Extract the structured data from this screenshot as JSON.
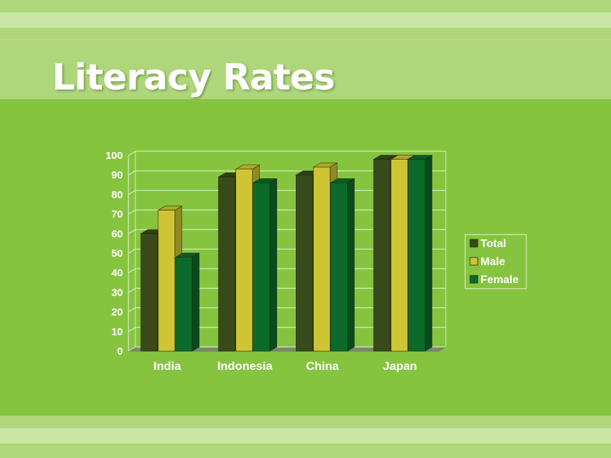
{
  "slide": {
    "title": "Literacy Rates"
  },
  "colors": {
    "background": "#86c440",
    "Total": "#3a4a1a",
    "Male": "#cfc534",
    "Female": "#0c6b2a"
  },
  "chart_data": {
    "type": "bar",
    "style": "3d-clustered-column",
    "title": "",
    "xlabel": "",
    "ylabel": "",
    "categories": [
      "India",
      "Indonesia",
      "China",
      "Japan"
    ],
    "series": [
      {
        "name": "Total",
        "values": [
          60,
          89,
          90,
          98
        ]
      },
      {
        "name": "Male",
        "values": [
          72,
          93,
          94,
          98
        ]
      },
      {
        "name": "Female",
        "values": [
          48,
          86,
          86,
          98
        ]
      }
    ],
    "ylim": [
      0,
      100
    ],
    "yticks": [
      "0",
      "10",
      "20",
      "30",
      "40",
      "50",
      "60",
      "70",
      "80",
      "90",
      "100"
    ],
    "grid": true,
    "legend": "right"
  }
}
